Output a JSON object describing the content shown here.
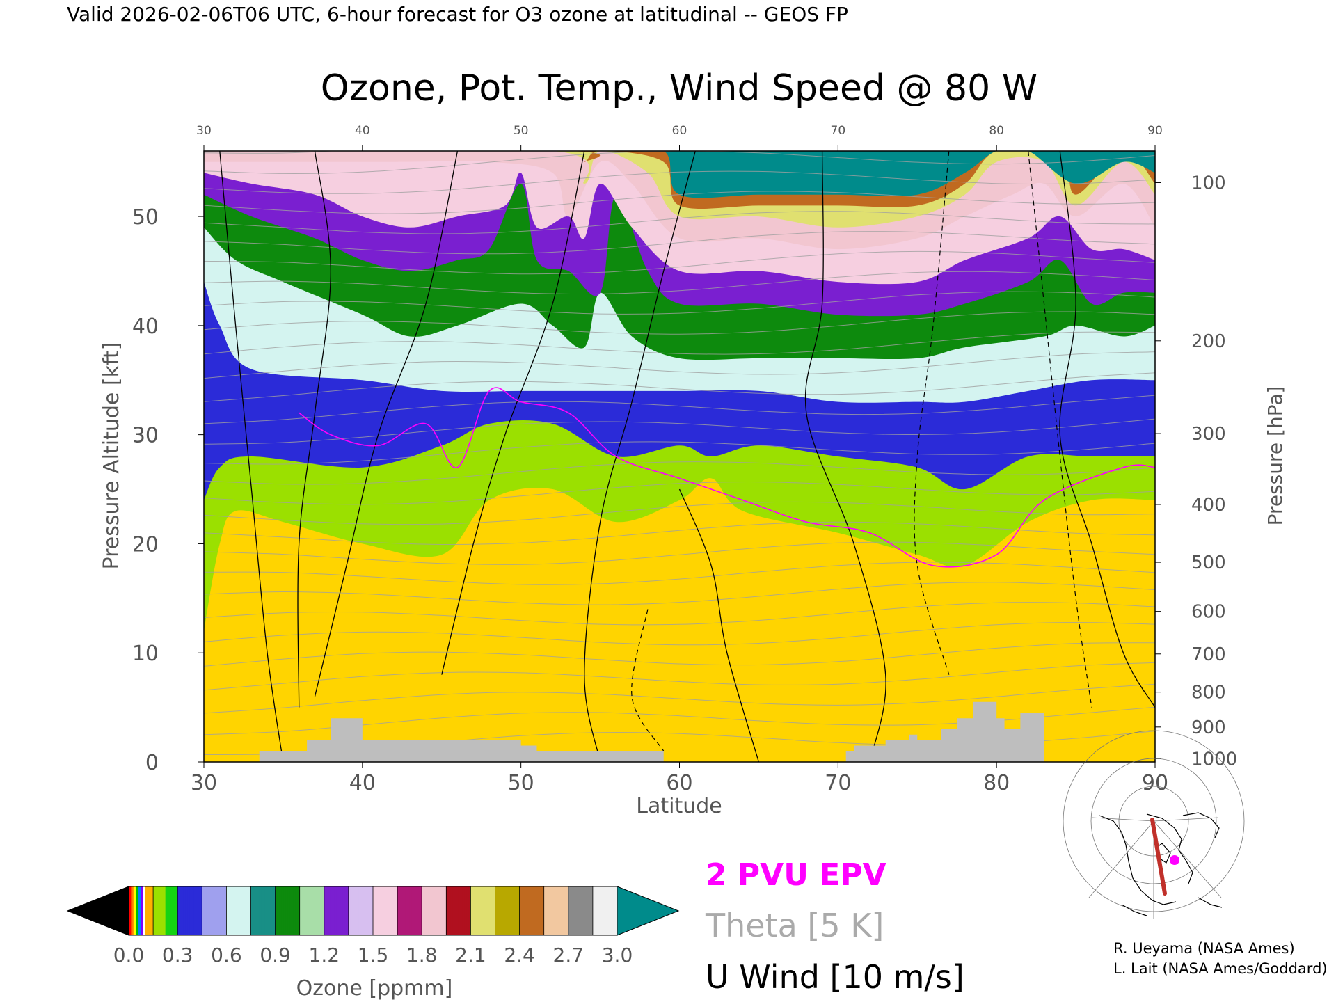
{
  "header": "Valid 2026-02-06T06 UTC, 6-hour forecast for O3 ozone at latitudinal -- GEOS FP",
  "chart_data": {
    "type": "heatmap",
    "title": "Ozone, Pot. Temp., Wind Speed @ 80 W",
    "xlabel": "Latitude",
    "ylabel": "Pressure Altitude [kft]",
    "y2label": "Pressure [hPa]",
    "xlim": [
      30,
      90
    ],
    "ylim": [
      0,
      56
    ],
    "x_ticks": [
      30,
      40,
      50,
      60,
      70,
      80,
      90
    ],
    "y_ticks": [
      0,
      10,
      20,
      30,
      40,
      50
    ],
    "pressure_ticks": [
      {
        "label": "100",
        "kft": 53.1
      },
      {
        "label": "200",
        "kft": 38.6
      },
      {
        "label": "300",
        "kft": 30.1
      },
      {
        "label": "400",
        "kft": 23.6
      },
      {
        "label": "500",
        "kft": 18.3
      },
      {
        "label": "600",
        "kft": 13.8
      },
      {
        "label": "700",
        "kft": 9.9
      },
      {
        "label": "800",
        "kft": 6.4
      },
      {
        "label": "900",
        "kft": 3.2
      },
      {
        "label": "1000",
        "kft": 0.3
      }
    ],
    "ozone_layer_boundaries": [
      {
        "ppmm": 0.15,
        "points": [
          [
            30,
            12
          ],
          [
            31,
            20
          ],
          [
            32,
            23
          ],
          [
            35,
            22
          ],
          [
            40,
            20
          ],
          [
            45,
            19
          ],
          [
            48,
            24
          ],
          [
            52,
            25
          ],
          [
            56,
            22
          ],
          [
            60,
            24
          ],
          [
            62,
            26
          ],
          [
            64,
            23
          ],
          [
            70,
            21
          ],
          [
            75,
            19
          ],
          [
            78,
            18
          ],
          [
            82,
            22
          ],
          [
            86,
            24
          ],
          [
            90,
            24
          ]
        ]
      },
      {
        "ppmm": 0.3,
        "points": [
          [
            30,
            24
          ],
          [
            31,
            27
          ],
          [
            33,
            28
          ],
          [
            40,
            27
          ],
          [
            45,
            29
          ],
          [
            48,
            31
          ],
          [
            52,
            31
          ],
          [
            56,
            28
          ],
          [
            60,
            29
          ],
          [
            62,
            28
          ],
          [
            65,
            29
          ],
          [
            70,
            28
          ],
          [
            75,
            27
          ],
          [
            78,
            25
          ],
          [
            82,
            28
          ],
          [
            86,
            28
          ],
          [
            90,
            28
          ]
        ]
      },
      {
        "ppmm": 0.6,
        "points": [
          [
            30,
            44
          ],
          [
            31,
            40
          ],
          [
            33,
            36
          ],
          [
            40,
            35
          ],
          [
            45,
            34
          ],
          [
            50,
            34
          ],
          [
            55,
            34
          ],
          [
            60,
            34
          ],
          [
            65,
            34
          ],
          [
            70,
            33
          ],
          [
            75,
            33
          ],
          [
            78,
            33
          ],
          [
            82,
            34
          ],
          [
            86,
            35
          ],
          [
            90,
            35
          ]
        ]
      },
      {
        "ppmm": 0.9,
        "points": [
          [
            30,
            49
          ],
          [
            32,
            46
          ],
          [
            35,
            44
          ],
          [
            40,
            41
          ],
          [
            43,
            39
          ],
          [
            46,
            40
          ],
          [
            50,
            42
          ],
          [
            52,
            40
          ],
          [
            54,
            38
          ],
          [
            55,
            43
          ],
          [
            57,
            39
          ],
          [
            60,
            37
          ],
          [
            65,
            37
          ],
          [
            70,
            37
          ],
          [
            75,
            37
          ],
          [
            78,
            38
          ],
          [
            83,
            39
          ],
          [
            85,
            40
          ],
          [
            88,
            39
          ],
          [
            90,
            40
          ]
        ]
      },
      {
        "ppmm": 1.2,
        "points": [
          [
            30,
            52
          ],
          [
            33,
            50
          ],
          [
            37,
            48
          ],
          [
            40,
            46
          ],
          [
            43,
            45
          ],
          [
            46,
            46
          ],
          [
            48,
            47
          ],
          [
            50,
            53
          ],
          [
            51,
            46
          ],
          [
            53,
            45
          ],
          [
            55,
            43
          ],
          [
            56,
            52
          ],
          [
            58,
            45
          ],
          [
            60,
            42
          ],
          [
            65,
            42
          ],
          [
            70,
            41
          ],
          [
            75,
            41
          ],
          [
            78,
            42
          ],
          [
            82,
            44
          ],
          [
            84,
            46
          ],
          [
            86,
            42
          ],
          [
            88,
            43
          ],
          [
            90,
            43
          ]
        ]
      },
      {
        "ppmm": 1.5,
        "points": [
          [
            30,
            54
          ],
          [
            33,
            53
          ],
          [
            37,
            52
          ],
          [
            40,
            50
          ],
          [
            43,
            49
          ],
          [
            46,
            50
          ],
          [
            49,
            51
          ],
          [
            50,
            54
          ],
          [
            51,
            49
          ],
          [
            53,
            50
          ],
          [
            54,
            48
          ],
          [
            55,
            53
          ],
          [
            57,
            49
          ],
          [
            60,
            45
          ],
          [
            65,
            45
          ],
          [
            70,
            44
          ],
          [
            75,
            44
          ],
          [
            78,
            46
          ],
          [
            82,
            48
          ],
          [
            84,
            50
          ],
          [
            86,
            47
          ],
          [
            88,
            47
          ],
          [
            90,
            46
          ]
        ]
      },
      {
        "ppmm": 1.8,
        "points": [
          [
            30,
            55
          ],
          [
            36,
            55
          ],
          [
            42,
            55
          ],
          [
            48,
            55
          ],
          [
            52,
            54
          ],
          [
            53,
            50
          ],
          [
            55,
            55
          ],
          [
            57,
            53
          ],
          [
            60,
            48
          ],
          [
            65,
            48
          ],
          [
            70,
            47
          ],
          [
            75,
            48
          ],
          [
            78,
            50
          ],
          [
            81,
            52
          ],
          [
            83,
            53
          ],
          [
            85,
            50
          ],
          [
            88,
            53
          ],
          [
            90,
            49
          ]
        ]
      },
      {
        "ppmm": 2.1,
        "points": [
          [
            52,
            56
          ],
          [
            54,
            53
          ],
          [
            55,
            56
          ],
          [
            58,
            54
          ],
          [
            60,
            50
          ],
          [
            65,
            50
          ],
          [
            70,
            49
          ],
          [
            75,
            50
          ],
          [
            78,
            52
          ],
          [
            80,
            55
          ],
          [
            83,
            55
          ],
          [
            85,
            51
          ],
          [
            88,
            55
          ],
          [
            90,
            52
          ]
        ]
      },
      {
        "ppmm": 2.4,
        "points": [
          [
            53,
            56
          ],
          [
            54,
            55
          ],
          [
            55,
            56
          ],
          [
            59,
            55
          ],
          [
            60,
            51
          ],
          [
            65,
            51
          ],
          [
            70,
            51
          ],
          [
            75,
            51
          ],
          [
            78,
            53
          ],
          [
            80,
            56
          ],
          [
            84,
            56
          ],
          [
            85,
            52
          ],
          [
            88,
            56
          ],
          [
            90,
            53
          ]
        ]
      },
      {
        "ppmm": 3.0,
        "points": [
          [
            55,
            56
          ],
          [
            59,
            56
          ],
          [
            60,
            52
          ],
          [
            65,
            52
          ],
          [
            70,
            52
          ],
          [
            75,
            52
          ],
          [
            78,
            54
          ],
          [
            80,
            56
          ],
          [
            82,
            56
          ],
          [
            85,
            53
          ],
          [
            88,
            55
          ],
          [
            90,
            54
          ]
        ]
      }
    ],
    "colorbar": {
      "label": "Ozone [ppmm]",
      "ticks": [
        "0.0",
        "0.3",
        "0.6",
        "0.9",
        "1.2",
        "1.5",
        "1.8",
        "2.1",
        "2.4",
        "2.7",
        "3.0"
      ],
      "min": 0.0,
      "max": 3.0,
      "low_color": "#000000",
      "high_color": "#008b8b"
    },
    "terrain_steps": [
      [
        33.5,
        1
      ],
      [
        36.5,
        2
      ],
      [
        38,
        4
      ],
      [
        40,
        2
      ],
      [
        50,
        1.5
      ],
      [
        51,
        1
      ],
      [
        59,
        0
      ],
      [
        70.5,
        1
      ],
      [
        71,
        1.5
      ],
      [
        73,
        2
      ],
      [
        74.5,
        2.5
      ],
      [
        75,
        2
      ],
      [
        76.5,
        3
      ],
      [
        77.5,
        4
      ],
      [
        78.5,
        5.5
      ],
      [
        80,
        4
      ],
      [
        80.5,
        3
      ],
      [
        81.5,
        4.5
      ],
      [
        83,
        0
      ]
    ],
    "legend": [
      {
        "label": "2 PVU EPV",
        "color": "#ff00ff"
      },
      {
        "label": "Theta [5 K]",
        "color": "#aaaaaa"
      },
      {
        "label": "U Wind [10 m/s]",
        "color": "#000000"
      }
    ]
  },
  "credits": [
    "R. Ueyama (NASA Ames)",
    "L. Lait (NASA Ames/Goddard)"
  ],
  "colors": {
    "epv": "#ff00ff",
    "theta": "#a0a0a0",
    "wind": "#000000",
    "terrain": "#bebebe",
    "map_track": "#c0302a",
    "map_dot": "#ff00ff"
  }
}
